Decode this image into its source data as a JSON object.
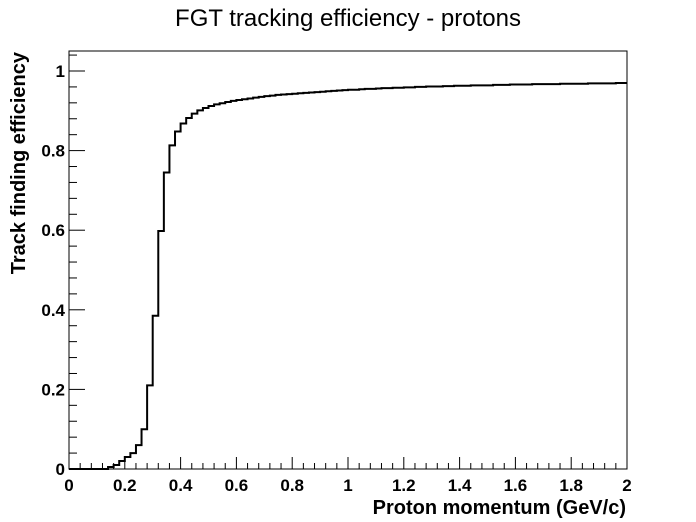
{
  "chart_data": {
    "type": "line",
    "title": "FGT tracking efficiency - protons",
    "xlabel": "Proton momentum (GeV/c)",
    "ylabel": "Track finding efficiency",
    "xlim": [
      0,
      2
    ],
    "ylim": [
      0,
      1.05
    ],
    "grid": false,
    "x_ticks": [
      0,
      0.2,
      0.4,
      0.6,
      0.8,
      1,
      1.2,
      1.4,
      1.6,
      1.8,
      2
    ],
    "x_tick_labels": [
      "0",
      "0.2",
      "0.4",
      "0.6",
      "0.8",
      "1",
      "1.2",
      "1.4",
      "1.6",
      "1.8",
      "2"
    ],
    "y_ticks": [
      0,
      0.2,
      0.4,
      0.6,
      0.8,
      1
    ],
    "y_tick_labels": [
      "0",
      "0.2",
      "0.4",
      "0.6",
      "0.8",
      "1"
    ],
    "bin_width": 0.02,
    "series": [
      {
        "values": [
          0,
          0,
          0,
          0,
          0,
          0,
          0,
          0.005,
          0.01,
          0.02,
          0.03,
          0.04,
          0.06,
          0.1,
          0.21,
          0.385,
          0.598,
          0.745,
          0.813,
          0.848,
          0.868,
          0.882,
          0.893,
          0.901,
          0.907,
          0.912,
          0.916,
          0.919,
          0.922,
          0.925,
          0.927,
          0.929,
          0.931,
          0.933,
          0.935,
          0.937,
          0.938,
          0.94,
          0.941,
          0.942,
          0.943,
          0.944,
          0.945,
          0.946,
          0.947,
          0.948,
          0.949,
          0.95,
          0.951,
          0.952,
          0.953,
          0.953,
          0.954,
          0.955,
          0.955,
          0.956,
          0.957,
          0.957,
          0.958,
          0.958,
          0.959,
          0.959,
          0.96,
          0.96,
          0.961,
          0.961,
          0.961,
          0.962,
          0.962,
          0.963,
          0.963,
          0.963,
          0.964,
          0.964,
          0.964,
          0.964,
          0.965,
          0.965,
          0.965,
          0.966,
          0.966,
          0.966,
          0.966,
          0.967,
          0.967,
          0.967,
          0.967,
          0.967,
          0.968,
          0.968,
          0.968,
          0.968,
          0.968,
          0.969,
          0.969,
          0.969,
          0.969,
          0.969,
          0.97,
          0.97
        ]
      }
    ]
  }
}
